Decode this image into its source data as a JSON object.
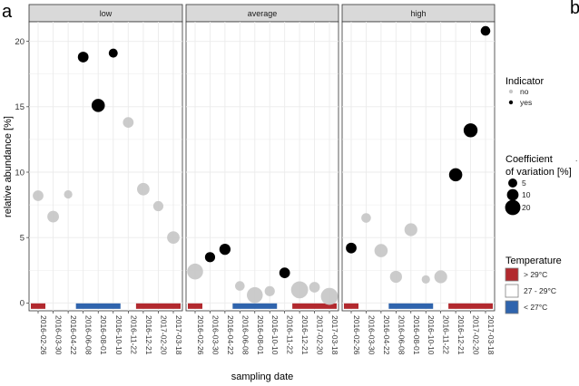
{
  "panel_tag": "a",
  "next_panel_tag": "b",
  "next_panel_fragment": ".",
  "chart_data": {
    "type": "scatter",
    "facets": [
      "low",
      "average",
      "high"
    ],
    "xlabel": "sampling date",
    "ylabel": "relative abundance [%]",
    "ylim": [
      -0.6,
      21.5
    ],
    "yticks": [
      0,
      5,
      10,
      15,
      20
    ],
    "categories": [
      "2016-02-26",
      "2016-03-30",
      "2016-04-22",
      "2016-06-08",
      "2016-08-01",
      "2016-10-10",
      "2016-11-22",
      "2016-12-21",
      "2017-02-20",
      "2017-03-18"
    ],
    "grid": true,
    "colors": {
      "yes": "#000000",
      "no": "#c8c8c8",
      "hot": "#b2292e",
      "mild": "#ffffff",
      "cool": "#2f64ad"
    },
    "points": {
      "low": [
        {
          "date": "2016-02-26",
          "value": 8.2,
          "indicator": "no",
          "cv": 8
        },
        {
          "date": "2016-03-30",
          "value": 6.6,
          "indicator": "no",
          "cv": 10
        },
        {
          "date": "2016-04-22",
          "value": 8.3,
          "indicator": "no",
          "cv": 4
        },
        {
          "date": "2016-06-08",
          "value": 18.8,
          "indicator": "yes",
          "cv": 8
        },
        {
          "date": "2016-08-01",
          "value": 15.1,
          "indicator": "yes",
          "cv": 14
        },
        {
          "date": "2016-10-10",
          "value": 19.1,
          "indicator": "yes",
          "cv": 5
        },
        {
          "date": "2016-11-22",
          "value": 13.8,
          "indicator": "no",
          "cv": 8
        },
        {
          "date": "2016-12-21",
          "value": 8.7,
          "indicator": "no",
          "cv": 12
        },
        {
          "date": "2017-02-20",
          "value": 7.4,
          "indicator": "no",
          "cv": 7
        },
        {
          "date": "2017-03-18",
          "value": 5.0,
          "indicator": "no",
          "cv": 12
        }
      ],
      "average": [
        {
          "date": "2016-02-26",
          "value": 2.4,
          "indicator": "no",
          "cv": 22
        },
        {
          "date": "2016-03-30",
          "value": 3.5,
          "indicator": "yes",
          "cv": 7
        },
        {
          "date": "2016-04-22",
          "value": 4.1,
          "indicator": "yes",
          "cv": 9
        },
        {
          "date": "2016-06-08",
          "value": 1.3,
          "indicator": "no",
          "cv": 6
        },
        {
          "date": "2016-08-01",
          "value": 0.6,
          "indicator": "no",
          "cv": 22
        },
        {
          "date": "2016-10-10",
          "value": 0.9,
          "indicator": "no",
          "cv": 7
        },
        {
          "date": "2016-11-22",
          "value": 2.3,
          "indicator": "yes",
          "cv": 8
        },
        {
          "date": "2016-12-21",
          "value": 1.0,
          "indicator": "no",
          "cv": 26
        },
        {
          "date": "2017-02-20",
          "value": 1.2,
          "indicator": "no",
          "cv": 8
        },
        {
          "date": "2017-03-18",
          "value": 0.5,
          "indicator": "no",
          "cv": 26
        }
      ],
      "high": [
        {
          "date": "2016-02-26",
          "value": 4.2,
          "indicator": "yes",
          "cv": 8
        },
        {
          "date": "2016-03-30",
          "value": 6.5,
          "indicator": "no",
          "cv": 6
        },
        {
          "date": "2016-04-22",
          "value": 4.0,
          "indicator": "no",
          "cv": 14
        },
        {
          "date": "2016-06-08",
          "value": 2.0,
          "indicator": "no",
          "cv": 11
        },
        {
          "date": "2016-08-01",
          "value": 5.6,
          "indicator": "no",
          "cv": 13
        },
        {
          "date": "2016-10-10",
          "value": 1.8,
          "indicator": "no",
          "cv": 4
        },
        {
          "date": "2016-11-22",
          "value": 2.0,
          "indicator": "no",
          "cv": 13
        },
        {
          "date": "2016-12-21",
          "value": 9.8,
          "indicator": "yes",
          "cv": 14
        },
        {
          "date": "2017-02-20",
          "value": 13.2,
          "indicator": "yes",
          "cv": 16
        },
        {
          "date": "2017-03-18",
          "value": 20.8,
          "indicator": "yes",
          "cv": 6
        }
      ]
    },
    "temperature_bars": [
      {
        "from": "2016-02-26",
        "to": "2016-02-26",
        "class": "hot"
      },
      {
        "from": "2016-06-08",
        "to": "2016-10-10",
        "class": "cool"
      },
      {
        "from": "2016-12-21",
        "to": "2017-03-18",
        "class": "hot"
      }
    ],
    "legend": {
      "indicator": {
        "title": "Indicator",
        "entries": [
          {
            "label": "no",
            "key": "no"
          },
          {
            "label": "yes",
            "key": "yes"
          }
        ]
      },
      "cv": {
        "title_line1": "Coefficient",
        "title_line2": "of variation [%]",
        "entries": [
          {
            "label": "5",
            "cv": 5
          },
          {
            "label": "10",
            "cv": 10
          },
          {
            "label": "20",
            "cv": 20
          }
        ]
      },
      "temperature": {
        "title": "Temperature",
        "entries": [
          {
            "label": "> 29°C",
            "key": "hot"
          },
          {
            "label": "27 - 29°C",
            "key": "mild"
          },
          {
            "label": "< 27°C",
            "key": "cool"
          }
        ]
      }
    }
  }
}
